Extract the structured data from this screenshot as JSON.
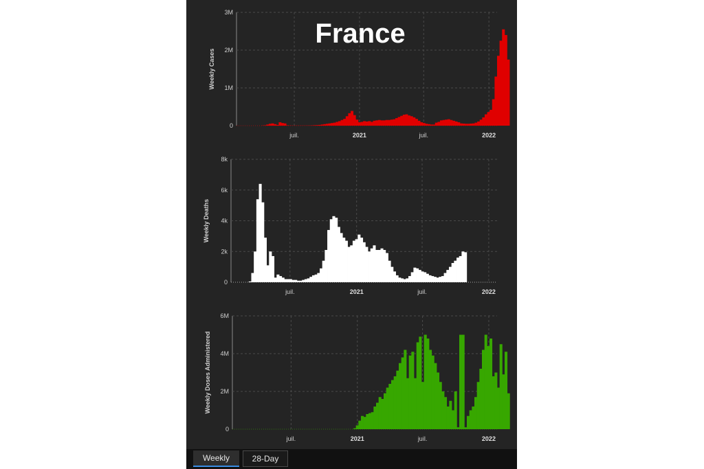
{
  "chart_data": [
    {
      "type": "bar",
      "title": "France",
      "ylabel": "Weekly Cases",
      "color": "#e00000",
      "ylim": [
        0,
        3000000
      ],
      "yticks": [
        "0",
        "1M",
        "2M",
        "3M"
      ],
      "x_date_range": [
        "2020-01-20",
        "2022-01-24"
      ],
      "xticks": [
        {
          "label": "juil.",
          "date": "2020-07-01",
          "bold": false
        },
        {
          "label": "2021",
          "date": "2021-01-01",
          "bold": true
        },
        {
          "label": "juil.",
          "date": "2021-07-01",
          "bold": false
        },
        {
          "label": "2022",
          "date": "2022-01-01",
          "bold": true
        }
      ],
      "start_week": "2020-01-20",
      "values": [
        0,
        0,
        0,
        0,
        0,
        0,
        0,
        0,
        0,
        0,
        5000,
        10000,
        30000,
        50000,
        60000,
        40000,
        20000,
        90000,
        70000,
        60000,
        10000,
        5000,
        3000,
        3000,
        3000,
        3000,
        3000,
        3000,
        4000,
        5000,
        8000,
        12000,
        15000,
        20000,
        30000,
        40000,
        50000,
        60000,
        70000,
        80000,
        100000,
        120000,
        150000,
        180000,
        250000,
        330000,
        390000,
        280000,
        160000,
        90000,
        100000,
        120000,
        110000,
        120000,
        100000,
        130000,
        140000,
        150000,
        140000,
        140000,
        150000,
        150000,
        160000,
        170000,
        200000,
        230000,
        260000,
        290000,
        300000,
        270000,
        250000,
        220000,
        180000,
        130000,
        90000,
        70000,
        50000,
        40000,
        30000,
        30000,
        80000,
        100000,
        140000,
        150000,
        160000,
        170000,
        150000,
        130000,
        110000,
        90000,
        60000,
        55000,
        50000,
        50000,
        55000,
        60000,
        80000,
        110000,
        160000,
        220000,
        300000,
        360000,
        420000,
        700000,
        1300000,
        1850000,
        2250000,
        2550000,
        2400000,
        1750000
      ]
    },
    {
      "type": "bar",
      "ylabel": "Weekly Deaths",
      "color": "#ffffff",
      "ylim": [
        0,
        8000
      ],
      "yticks": [
        "0",
        "2k",
        "4k",
        "6k",
        "8k"
      ],
      "x_date_range": [
        "2020-01-20",
        "2022-01-24"
      ],
      "xticks": [
        {
          "label": "juil.",
          "date": "2020-07-01",
          "bold": false
        },
        {
          "label": "2021",
          "date": "2021-01-01",
          "bold": true
        },
        {
          "label": "juil.",
          "date": "2021-07-01",
          "bold": false
        },
        {
          "label": "2022",
          "date": "2022-01-01",
          "bold": true
        }
      ],
      "start_week": "2020-01-20",
      "values": [
        0,
        0,
        0,
        0,
        0,
        0,
        0,
        50,
        600,
        2000,
        5400,
        6400,
        5200,
        2900,
        1100,
        2000,
        1700,
        300,
        500,
        400,
        300,
        200,
        200,
        200,
        150,
        150,
        100,
        100,
        150,
        200,
        250,
        350,
        450,
        500,
        600,
        900,
        1400,
        2100,
        3400,
        4100,
        4300,
        4200,
        3600,
        3200,
        2900,
        2700,
        2300,
        2400,
        2700,
        2800,
        3100,
        2900,
        2600,
        2300,
        2000,
        2200,
        2400,
        2100,
        2100,
        2200,
        2100,
        1900,
        1400,
        1000,
        700,
        450,
        300,
        250,
        200,
        250,
        400,
        650,
        950,
        900,
        800,
        700,
        650,
        550,
        450,
        400,
        350,
        300,
        350,
        400,
        600,
        800,
        1000,
        1250,
        1400,
        1600,
        1700,
        2000,
        1950
      ]
    },
    {
      "type": "bar",
      "ylabel": "Weekly Doses Administered",
      "color": "#37a700",
      "ylim": [
        0,
        6000000
      ],
      "yticks": [
        "0",
        "2M",
        "4M",
        "6M"
      ],
      "x_date_range": [
        "2020-01-20",
        "2022-01-24"
      ],
      "xticks": [
        {
          "label": "juil.",
          "date": "2020-07-01",
          "bold": false
        },
        {
          "label": "2021",
          "date": "2021-01-01",
          "bold": true
        },
        {
          "label": "juil.",
          "date": "2021-07-01",
          "bold": false
        },
        {
          "label": "2022",
          "date": "2022-01-01",
          "bold": true
        }
      ],
      "start_week": "2020-12-21",
      "values": [
        50000,
        200000,
        450000,
        700000,
        650000,
        800000,
        850000,
        900000,
        1200000,
        1400000,
        1700000,
        1600000,
        1900000,
        2200000,
        2400000,
        2600000,
        2800000,
        3100000,
        3500000,
        3800000,
        4200000,
        2700000,
        3900000,
        4100000,
        2700000,
        4600000,
        4900000,
        2500000,
        5000000,
        4800000,
        4200000,
        3900000,
        3500000,
        3000000,
        2500000,
        2000000,
        1700000,
        1200000,
        1500000,
        1000000,
        2000000,
        100000,
        5000000,
        5000000,
        100000,
        700000,
        1000000,
        1200000,
        1700000,
        2500000,
        3200000,
        4200000,
        5000000,
        4400000,
        4800000,
        2800000,
        3000000,
        2200000,
        4500000,
        2900000,
        4100000,
        1900000
      ]
    }
  ],
  "tabs": {
    "weekly_label": "Weekly",
    "day28_label": "28-Day"
  }
}
